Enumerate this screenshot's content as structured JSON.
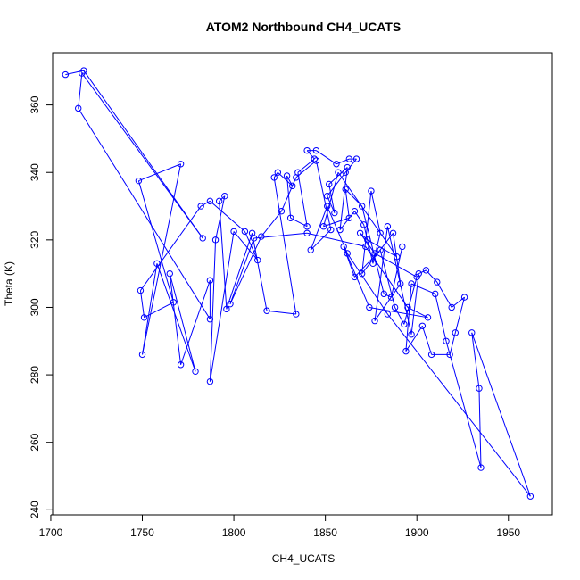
{
  "chart_data": {
    "type": "line",
    "title": "ATOM2 Northbound CH4_UCATS",
    "xlabel": "CH4_UCATS",
    "ylabel": "Theta (K)",
    "xlim": [
      1701,
      1974
    ],
    "ylim": [
      238.5,
      375.5
    ],
    "xticks": [
      1700,
      1750,
      1800,
      1850,
      1900,
      1950
    ],
    "yticks": [
      240,
      260,
      280,
      300,
      320,
      340,
      360
    ],
    "xtick_labels": [
      "1700",
      "1750",
      "1800",
      "1850",
      "1900",
      "1950"
    ],
    "ytick_labels": [
      "240",
      "260",
      "280",
      "300",
      "320",
      "340",
      "360"
    ],
    "series": [
      {
        "color": "#0000ff",
        "marker": "open-circle",
        "points": [
          [
            1708,
            369.0
          ],
          [
            1718,
            370.2
          ],
          [
            1783,
            320.5
          ],
          [
            1717,
            369.4
          ],
          [
            1715,
            359.0
          ],
          [
            1787,
            296.5
          ],
          [
            1787,
            308.0
          ],
          [
            1771,
            283.0
          ],
          [
            1765,
            310.0
          ],
          [
            1779,
            281.0
          ],
          [
            1758,
            313.0
          ],
          [
            1750,
            286.0
          ],
          [
            1771,
            342.5
          ],
          [
            1748,
            337.5
          ],
          [
            1767,
            301.5
          ],
          [
            1751,
            297.0
          ],
          [
            1749,
            305.0
          ],
          [
            1782,
            330.0
          ],
          [
            1787,
            331.5
          ],
          [
            1806,
            322.5
          ],
          [
            1813,
            314.0
          ],
          [
            1800,
            322.5
          ],
          [
            1787,
            278.0
          ],
          [
            1790,
            320.0
          ],
          [
            1795,
            333.0
          ],
          [
            1792,
            331.5
          ],
          [
            1796,
            299.5
          ],
          [
            1810,
            322.0
          ],
          [
            1818,
            299.0
          ],
          [
            1834,
            298.0
          ],
          [
            1822,
            338.5
          ],
          [
            1824,
            340.0
          ],
          [
            1832,
            336.0
          ],
          [
            1829,
            339.0
          ],
          [
            1831,
            326.5
          ],
          [
            1840,
            324.0
          ],
          [
            1835,
            340.0
          ],
          [
            1844,
            344.0
          ],
          [
            1840,
            346.5
          ],
          [
            1845,
            346.5
          ],
          [
            1856,
            342.5
          ],
          [
            1863,
            344.0
          ],
          [
            1867,
            344.0
          ],
          [
            1861,
            340.0
          ],
          [
            1851,
            333.0
          ],
          [
            1855,
            328.0
          ],
          [
            1852,
            336.5
          ],
          [
            1862,
            341.5
          ],
          [
            1858,
            323.0
          ],
          [
            1866,
            328.5
          ],
          [
            1871,
            324.5
          ],
          [
            1876,
            313.0
          ],
          [
            1880,
            322.0
          ],
          [
            1875,
            334.5
          ],
          [
            1870,
            310.0
          ],
          [
            1887,
            322.0
          ],
          [
            1891,
            307.0
          ],
          [
            1877,
            296.0
          ],
          [
            1884,
            324.0
          ],
          [
            1897,
            292.0
          ],
          [
            1901,
            310.0
          ],
          [
            1905,
            311.0
          ],
          [
            1911,
            307.5
          ],
          [
            1919,
            300.0
          ],
          [
            1926,
            303.0
          ],
          [
            1921,
            292.5
          ],
          [
            1918,
            286.0
          ],
          [
            1908,
            286.0
          ],
          [
            1903,
            294.5
          ],
          [
            1894,
            287.0
          ],
          [
            1897,
            307.0
          ],
          [
            1910,
            304.0
          ],
          [
            1916,
            290.0
          ],
          [
            1935,
            252.5
          ],
          [
            1934,
            276.0
          ],
          [
            1930,
            292.5
          ],
          [
            1962,
            244.0
          ],
          [
            1884,
            298.0
          ],
          [
            1862,
            316.0
          ],
          [
            1851,
            330.0
          ],
          [
            1842,
            317.0
          ],
          [
            1853,
            323.0
          ],
          [
            1845,
            343.5
          ],
          [
            1834,
            338.5
          ],
          [
            1826,
            328.5
          ],
          [
            1815,
            321.0
          ],
          [
            1798,
            301.0
          ],
          [
            1811,
            320.5
          ],
          [
            1840,
            322.0
          ],
          [
            1872,
            318.0
          ],
          [
            1895,
            300.0
          ],
          [
            1906,
            297.0
          ],
          [
            1874,
            300.0
          ],
          [
            1860,
            318.0
          ],
          [
            1866,
            309.0
          ],
          [
            1880,
            317.0
          ],
          [
            1888,
            300.0
          ],
          [
            1893,
            295.0
          ],
          [
            1900,
            309.0
          ],
          [
            1877,
            316.0
          ],
          [
            1869,
            322.0
          ],
          [
            1873,
            320.0
          ],
          [
            1889,
            315.0
          ],
          [
            1857,
            340.0
          ],
          [
            1849,
            324.0
          ],
          [
            1863,
            326.5
          ],
          [
            1861,
            335.0
          ],
          [
            1870,
            330.0
          ],
          [
            1882,
            304.0
          ],
          [
            1886,
            303.0
          ],
          [
            1892,
            318.0
          ]
        ]
      }
    ]
  }
}
